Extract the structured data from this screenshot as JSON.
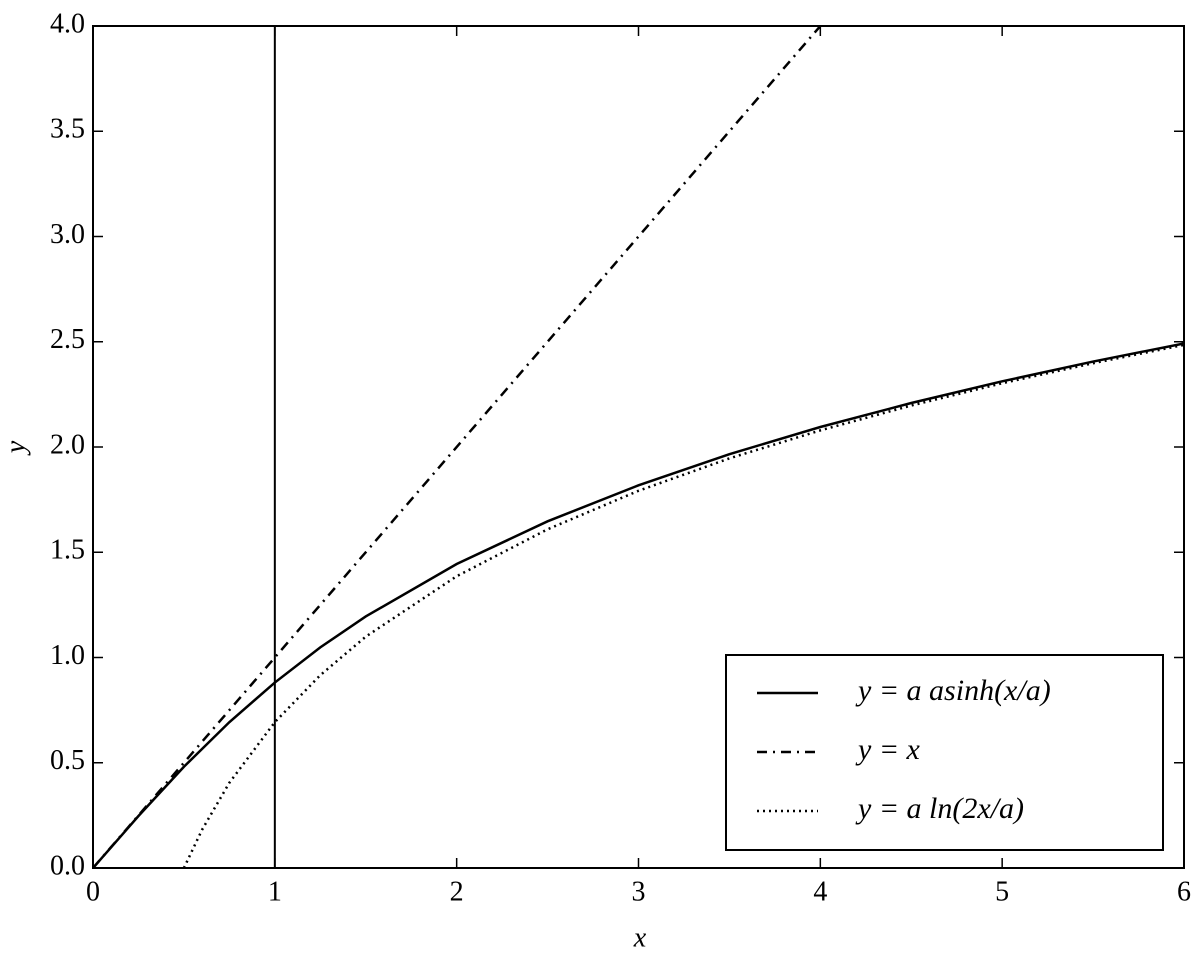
{
  "chart_data": {
    "type": "line",
    "xlabel": "x",
    "ylabel": "y",
    "xlim": [
      0,
      6
    ],
    "ylim": [
      0,
      4
    ],
    "xticks": [
      0,
      1,
      2,
      3,
      4,
      5,
      6
    ],
    "yticks": [
      {
        "value": 0,
        "label": "0.0"
      },
      0.5,
      {
        "value": 1,
        "label": "1.0"
      },
      1.5,
      {
        "value": 2,
        "label": "2.0"
      },
      2.5,
      {
        "value": 3,
        "label": "3.0"
      },
      3.5,
      {
        "value": 4,
        "label": "4.0"
      }
    ],
    "vlines": [
      1
    ],
    "legend": "lower right",
    "series": [
      {
        "name": "y = a asinh(x/a)",
        "color": "#000000",
        "linestyle": "solid",
        "x": [
          0,
          0.25,
          0.5,
          0.75,
          1,
          1.25,
          1.5,
          2,
          2.5,
          3,
          3.5,
          4,
          4.5,
          5,
          5.5,
          6
        ],
        "values": [
          0,
          0.247,
          0.481,
          0.693,
          0.881,
          1.048,
          1.195,
          1.444,
          1.647,
          1.818,
          1.966,
          2.095,
          2.209,
          2.312,
          2.406,
          2.492
        ]
      },
      {
        "name": "y = x",
        "color": "#000000",
        "linestyle": "dashdot",
        "x": [
          0,
          4
        ],
        "values": [
          0,
          4
        ]
      },
      {
        "name": "y = a ln(2x/a)",
        "color": "#000000",
        "linestyle": "dotted",
        "x": [
          0.5,
          0.6,
          0.75,
          1,
          1.25,
          1.5,
          2,
          2.5,
          3,
          3.5,
          4,
          4.5,
          5,
          5.5,
          6
        ],
        "values": [
          0,
          0.182,
          0.405,
          0.693,
          0.916,
          1.099,
          1.386,
          1.609,
          1.792,
          1.946,
          2.079,
          2.197,
          2.303,
          2.398,
          2.485
        ]
      }
    ]
  }
}
